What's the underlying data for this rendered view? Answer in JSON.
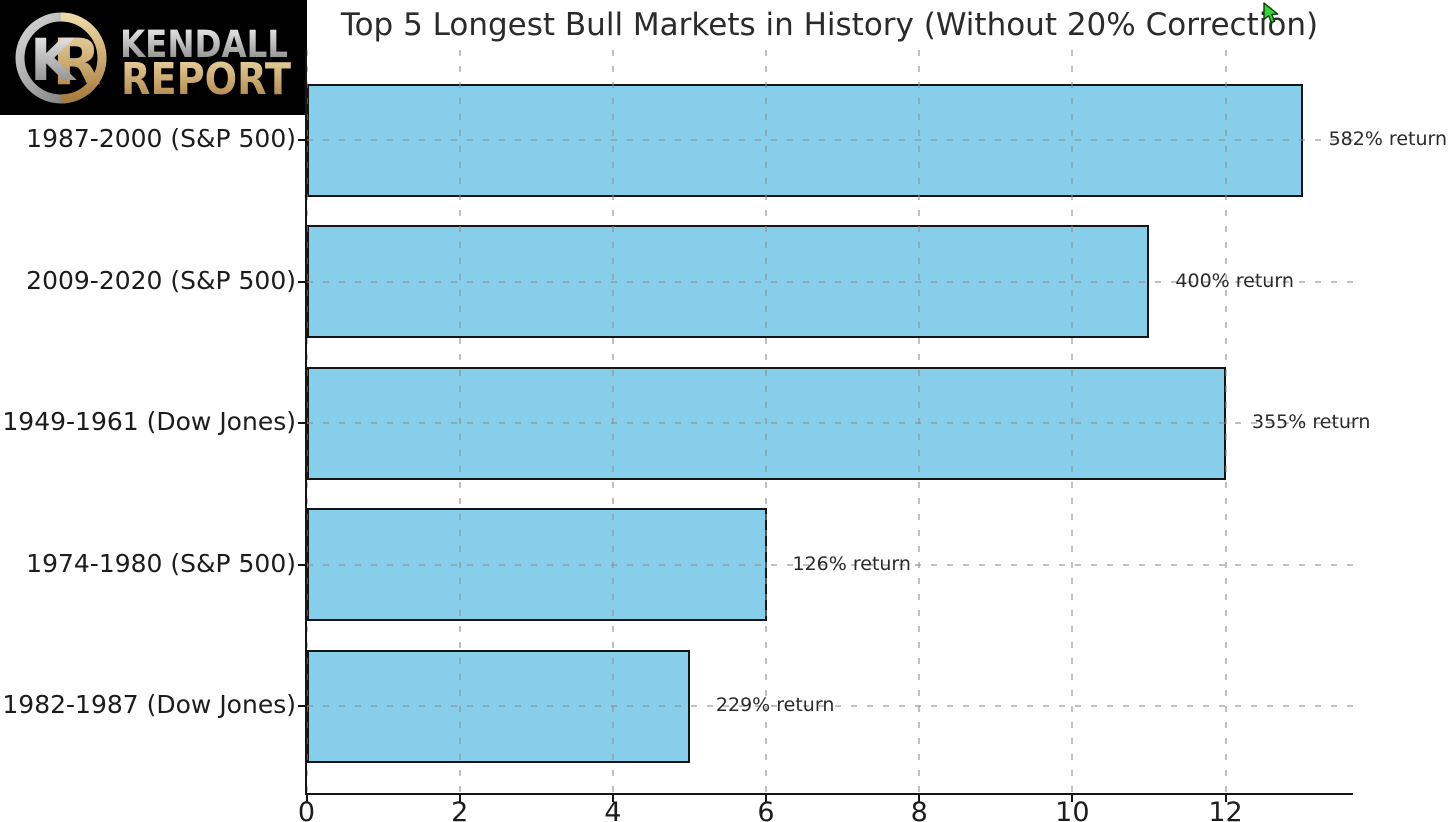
{
  "logo": {
    "monogram_k": "K",
    "monogram_r": "R",
    "name_line1": "KENDALL",
    "name_line2": "REPORT",
    "colors": {
      "background": "#000000",
      "silver_light": "#f4f4f4",
      "silver_dark": "#7f7f7f",
      "gold_light": "#eed9a5",
      "gold_dark": "#a87c3c"
    }
  },
  "chart_data": {
    "type": "bar",
    "orientation": "horizontal",
    "title": "Top 5 Longest Bull Markets in History (Without 20% Correction)",
    "categories": [
      "1987-2000 (S&P 500)",
      "2009-2020 (S&P 500)",
      "1949-1961 (Dow Jones)",
      "1974-1980 (S&P 500)",
      "1982-1987 (Dow Jones)"
    ],
    "values": [
      13,
      11,
      12,
      6,
      5
    ],
    "bar_value_labels": [
      "582% return",
      "400% return",
      "355% return",
      "126% return",
      "229% return"
    ],
    "x_ticks": [
      "0",
      "2",
      "4",
      "6",
      "8",
      "10",
      "12"
    ],
    "xlim": [
      0,
      13.65
    ],
    "xlabel": "",
    "ylabel": "",
    "grid": {
      "style": "dashed",
      "axes": "both"
    },
    "legend": null,
    "colors": {
      "bar_fill": "#87CEEB",
      "bar_edge": "#151515",
      "grid": "#c8c8c8",
      "text": "#262626"
    }
  },
  "cursor": {
    "style": "green-arrow-pointer",
    "fill": "#35d62e",
    "outline": "#0c3b0c"
  }
}
